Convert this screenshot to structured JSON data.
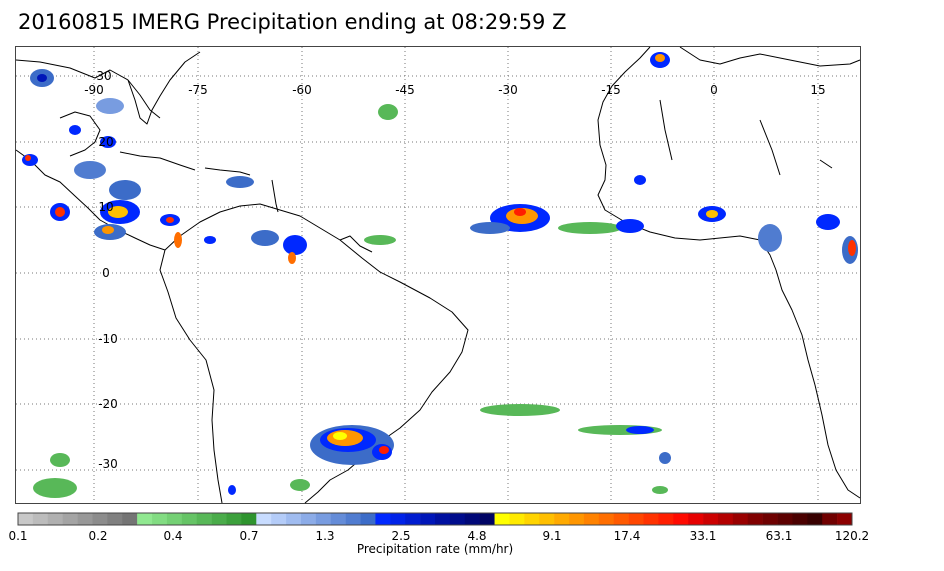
{
  "title": "20160815 IMERG Precipitation ending at 08:29:59 Z",
  "map": {
    "lon_labels": [
      "-90",
      "-75",
      "-60",
      "-45",
      "-30",
      "-15",
      "0",
      "15"
    ],
    "lat_labels": [
      "30",
      "20",
      "10",
      "0",
      "-10",
      "-20",
      "-30"
    ],
    "grid": "dotted",
    "coastline_color": "#000000"
  },
  "colorbar": {
    "title": "Precipitation rate (mm/hr)",
    "tick_labels": [
      "0.1",
      "0.2",
      "0.4",
      "0.7",
      "1.3",
      "2.5",
      "4.8",
      "9.1",
      "17.4",
      "33.1",
      "63.1",
      "120.2"
    ],
    "colors": [
      "#c8c8c8",
      "#bcbcbc",
      "#b0b0b0",
      "#a4a4a4",
      "#989898",
      "#8c8c8c",
      "#808080",
      "#747474",
      "#90e890",
      "#82dc82",
      "#74d074",
      "#66c466",
      "#58b858",
      "#4aac4a",
      "#3ca03c",
      "#2e942e",
      "#c8dcff",
      "#b4ccf8",
      "#a0bcf0",
      "#8cace8",
      "#789ce0",
      "#648cd8",
      "#507cd0",
      "#3c6cc8",
      "#0028ff",
      "#0022e8",
      "#001cd0",
      "#0016b8",
      "#0010a0",
      "#000c8c",
      "#000878",
      "#000464",
      "#ffff00",
      "#ffea00",
      "#ffd400",
      "#ffbf00",
      "#ffaa00",
      "#ff9600",
      "#ff8200",
      "#ff6e00",
      "#ff5a00",
      "#ff4600",
      "#ff3200",
      "#ff1e00",
      "#ff0a00",
      "#e60000",
      "#cc0000",
      "#b30000",
      "#990000",
      "#800000",
      "#6e0000",
      "#5c0000",
      "#4a0000",
      "#380000",
      "#700000",
      "#8c0000"
    ]
  }
}
